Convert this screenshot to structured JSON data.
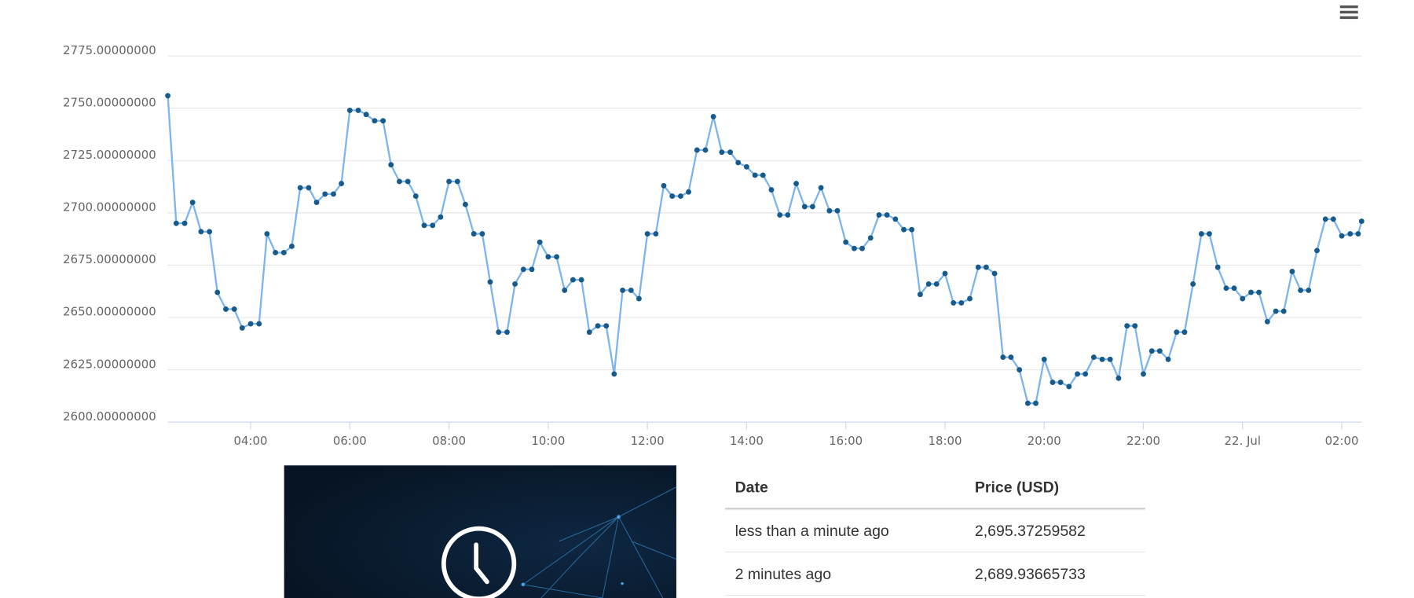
{
  "chart_data": {
    "type": "line",
    "x": [
      2.33,
      2.5,
      2.67,
      2.83,
      3,
      3.17,
      3.33,
      3.5,
      3.67,
      3.83,
      4,
      4.17,
      4.33,
      4.5,
      4.67,
      4.83,
      5,
      5.17,
      5.33,
      5.5,
      5.67,
      5.83,
      6,
      6.17,
      6.33,
      6.5,
      6.67,
      6.83,
      7,
      7.17,
      7.33,
      7.5,
      7.67,
      7.83,
      8,
      8.17,
      8.33,
      8.5,
      8.67,
      8.83,
      9,
      9.17,
      9.33,
      9.5,
      9.67,
      9.83,
      10,
      10.17,
      10.33,
      10.5,
      10.67,
      10.83,
      11,
      11.17,
      11.33,
      11.5,
      11.67,
      11.83,
      12,
      12.17,
      12.33,
      12.5,
      12.67,
      12.83,
      13,
      13.17,
      13.33,
      13.5,
      13.67,
      13.83,
      14,
      14.17,
      14.33,
      14.5,
      14.67,
      14.83,
      15,
      15.17,
      15.33,
      15.5,
      15.67,
      15.83,
      16,
      16.17,
      16.33,
      16.5,
      16.67,
      16.83,
      17,
      17.17,
      17.33,
      17.5,
      17.67,
      17.83,
      18,
      18.17,
      18.33,
      18.5,
      18.67,
      18.83,
      19,
      19.17,
      19.33,
      19.5,
      19.67,
      19.83,
      20,
      20.17,
      20.33,
      20.5,
      20.67,
      20.83,
      21,
      21.17,
      21.33,
      21.5,
      21.67,
      21.83,
      22,
      22.17,
      22.33,
      22.5,
      22.67,
      22.83,
      23,
      23.17,
      23.33,
      23.5,
      23.67,
      23.83,
      24,
      24.17,
      24.33,
      24.5,
      24.67,
      24.83,
      25,
      25.17,
      25.33,
      25.5,
      25.67,
      25.83,
      26,
      26.17,
      26.33,
      26.4
    ],
    "series": [
      {
        "color": "#7cb5ec",
        "marker_color": "#175a8c",
        "values": [
          2756,
          2695,
          2695,
          2705,
          2691,
          2691,
          2662,
          2654,
          2654,
          2645,
          2647,
          2647,
          2690,
          2681,
          2681,
          2684,
          2712,
          2712,
          2705,
          2709,
          2709,
          2714,
          2749,
          2749,
          2747,
          2744,
          2744,
          2723,
          2715,
          2715,
          2708,
          2694,
          2694,
          2698,
          2715,
          2715,
          2704,
          2690,
          2690,
          2667,
          2643,
          2643,
          2666,
          2673,
          2673,
          2686,
          2679,
          2679,
          2663,
          2668,
          2668,
          2643,
          2646,
          2646,
          2623,
          2663,
          2663,
          2659,
          2690,
          2690,
          2713,
          2708,
          2708,
          2710,
          2730,
          2730,
          2746,
          2729,
          2729,
          2724,
          2722,
          2718,
          2718,
          2711,
          2699,
          2699,
          2714,
          2703,
          2703,
          2712,
          2701,
          2701,
          2686,
          2683,
          2683,
          2688,
          2699,
          2699,
          2697,
          2692,
          2692,
          2661,
          2666,
          2666,
          2671,
          2657,
          2657,
          2659,
          2674,
          2674,
          2671,
          2631,
          2631,
          2625,
          2609,
          2609,
          2630,
          2619,
          2619,
          2617,
          2623,
          2623,
          2631,
          2630,
          2630,
          2621,
          2646,
          2646,
          2623,
          2634,
          2634,
          2630,
          2643,
          2643,
          2666,
          2690,
          2690,
          2674,
          2664,
          2664,
          2659,
          2662,
          2662,
          2648,
          2653,
          2653,
          2672,
          2663,
          2663,
          2682,
          2697,
          2697,
          2689,
          2690,
          2690,
          2696
        ]
      }
    ],
    "xlim": [
      2.33,
      26.4
    ],
    "xticks": [
      {
        "value": 4,
        "label": "04:00"
      },
      {
        "value": 6,
        "label": "06:00"
      },
      {
        "value": 8,
        "label": "08:00"
      },
      {
        "value": 10,
        "label": "10:00"
      },
      {
        "value": 12,
        "label": "12:00"
      },
      {
        "value": 14,
        "label": "14:00"
      },
      {
        "value": 16,
        "label": "16:00"
      },
      {
        "value": 18,
        "label": "18:00"
      },
      {
        "value": 20,
        "label": "20:00"
      },
      {
        "value": 22,
        "label": "22:00"
      },
      {
        "value": 24,
        "label": "22. Jul"
      },
      {
        "value": 26,
        "label": "02:00"
      }
    ],
    "ylim": [
      2600,
      2775
    ],
    "yticks": [
      {
        "value": 2600,
        "label": "2600.00000000"
      },
      {
        "value": 2625,
        "label": "2625.00000000"
      },
      {
        "value": 2650,
        "label": "2650.00000000"
      },
      {
        "value": 2675,
        "label": "2675.00000000"
      },
      {
        "value": 2700,
        "label": "2700.00000000"
      },
      {
        "value": 2725,
        "label": "2725.00000000"
      },
      {
        "value": 2750,
        "label": "2750.00000000"
      },
      {
        "value": 2775,
        "label": "2775.00000000"
      }
    ],
    "grid": true
  },
  "table": {
    "header": [
      "Date",
      "Price (USD)"
    ],
    "rows": [
      [
        "less than a minute ago",
        "2,695.37259582"
      ],
      [
        "2 minutes ago",
        "2,689.93665733"
      ]
    ]
  }
}
